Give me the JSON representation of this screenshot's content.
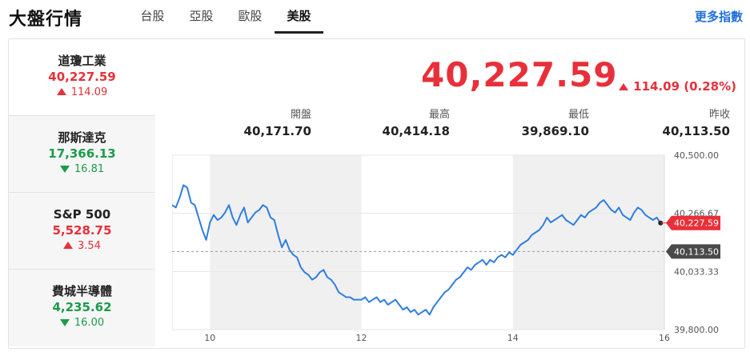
{
  "header": {
    "title": "大盤行情",
    "tabs": [
      "台股",
      "亞股",
      "歐股",
      "美股"
    ],
    "active_tab": "美股",
    "more_link": "更多指數"
  },
  "sidebar": {
    "items": [
      {
        "name": "道瓊工業",
        "value": "40,227.59",
        "change": "114.09",
        "direction": "up"
      },
      {
        "name": "那斯達克",
        "value": "17,366.13",
        "change": "16.81",
        "direction": "down"
      },
      {
        "name": "S&P 500",
        "value": "5,528.75",
        "change": "3.54",
        "direction": "up"
      },
      {
        "name": "費城半導體",
        "value": "4,235.62",
        "change": "16.00",
        "direction": "down"
      }
    ]
  },
  "main": {
    "price": "40,227.59",
    "change": "114.09 (0.28%)",
    "stats": [
      {
        "label": "開盤",
        "value": "40,171.70"
      },
      {
        "label": "最高",
        "value": "40,414.18"
      },
      {
        "label": "最低",
        "value": "39,869.10"
      },
      {
        "label": "昨收",
        "value": "40,113.50"
      }
    ]
  },
  "colors": {
    "up": "#e8303a",
    "down": "#1c9b4a",
    "line": "#2f7de1",
    "accent": "#1e6fd9"
  },
  "chart_data": {
    "type": "line",
    "x_ticks": [
      "10",
      "12",
      "14",
      "16"
    ],
    "y_ticks": [
      "40,500.00",
      "40,266.67",
      "40,033.33",
      "39,800.00"
    ],
    "ylim": [
      39800,
      40500
    ],
    "xlim": [
      9.5,
      16
    ],
    "prev_close": 40113.5,
    "prev_close_label": "40,113.50",
    "last_label": "40,227.59",
    "shaded_hours": [
      [
        10,
        12
      ],
      [
        14,
        16
      ]
    ],
    "series": [
      {
        "x": [
          9.5,
          9.55,
          9.6,
          9.65,
          9.7,
          9.75,
          9.8,
          9.85,
          9.9,
          9.95,
          10.0,
          10.05,
          10.1,
          10.15,
          10.2,
          10.25,
          10.3,
          10.35,
          10.4,
          10.45,
          10.5,
          10.55,
          10.6,
          10.65,
          10.7,
          10.75,
          10.8,
          10.85,
          10.9,
          10.95,
          11.0,
          11.05,
          11.1,
          11.15,
          11.2,
          11.25,
          11.3,
          11.35,
          11.4,
          11.45,
          11.5,
          11.55,
          11.6,
          11.65,
          11.7,
          11.75,
          11.8,
          11.85,
          11.9,
          11.95,
          12.0,
          12.05,
          12.1,
          12.15,
          12.2,
          12.25,
          12.3,
          12.35,
          12.4,
          12.45,
          12.5,
          12.55,
          12.6,
          12.65,
          12.7,
          12.75,
          12.8,
          12.85,
          12.9,
          12.95,
          13.0,
          13.05,
          13.1,
          13.15,
          13.2,
          13.25,
          13.3,
          13.35,
          13.4,
          13.45,
          13.5,
          13.55,
          13.6,
          13.65,
          13.7,
          13.75,
          13.8,
          13.85,
          13.9,
          13.95,
          14.0,
          14.05,
          14.1,
          14.15,
          14.2,
          14.25,
          14.3,
          14.35,
          14.4,
          14.45,
          14.5,
          14.55,
          14.6,
          14.65,
          14.7,
          14.75,
          14.8,
          14.85,
          14.9,
          14.95,
          15.0,
          15.05,
          15.1,
          15.15,
          15.2,
          15.25,
          15.3,
          15.35,
          15.4,
          15.45,
          15.5,
          15.55,
          15.6,
          15.65,
          15.7,
          15.75,
          15.8,
          15.85,
          15.9,
          15.95
        ],
        "y": [
          40300,
          40290,
          40330,
          40380,
          40370,
          40310,
          40300,
          40250,
          40200,
          40160,
          40230,
          40260,
          40240,
          40250,
          40270,
          40300,
          40250,
          40220,
          40260,
          40290,
          40230,
          40250,
          40270,
          40280,
          40300,
          40290,
          40250,
          40240,
          40180,
          40130,
          40160,
          40120,
          40100,
          40090,
          40050,
          40030,
          40020,
          40000,
          40010,
          40030,
          40040,
          40010,
          40000,
          39980,
          39950,
          39940,
          39930,
          39930,
          39920,
          39920,
          39920,
          39930,
          39910,
          39920,
          39930,
          39910,
          39920,
          39900,
          39910,
          39920,
          39900,
          39880,
          39890,
          39870,
          39880,
          39860,
          39870,
          39880,
          39860,
          39890,
          39910,
          39930,
          39950,
          39960,
          39980,
          40000,
          40010,
          40030,
          40050,
          40040,
          40060,
          40070,
          40080,
          40060,
          40080,
          40070,
          40090,
          40100,
          40090,
          40110,
          40100,
          40120,
          40140,
          40150,
          40160,
          40180,
          40190,
          40200,
          40220,
          40250,
          40230,
          40240,
          40250,
          40260,
          40240,
          40230,
          40220,
          40240,
          40260,
          40250,
          40270,
          40280,
          40290,
          40310,
          40320,
          40300,
          40280,
          40270,
          40290,
          40260,
          40250,
          40240,
          40270,
          40290,
          40280,
          40260,
          40250,
          40240,
          40250,
          40228
        ]
      }
    ]
  }
}
